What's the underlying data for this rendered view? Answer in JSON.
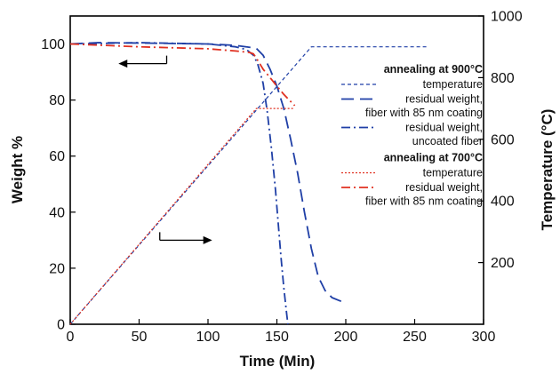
{
  "chart_data": {
    "type": "line",
    "xlabel": "Time (Min)",
    "ylabel": "Weight %",
    "y2label": "Temperature (°C)",
    "xlim": [
      0,
      300
    ],
    "ylim": [
      0,
      110
    ],
    "y2lim": [
      0,
      1000
    ],
    "xticks": [
      0,
      50,
      100,
      150,
      200,
      250,
      300
    ],
    "yticks": [
      0,
      20,
      40,
      60,
      80,
      100
    ],
    "y2ticks": [
      200,
      400,
      600,
      800,
      1000
    ],
    "grid": false,
    "legend_position": "right",
    "legend_groups": [
      {
        "title": "annealing at 900°C",
        "entries": [
          {
            "lines": [
              "temperature"
            ],
            "series": 0
          },
          {
            "lines": [
              "residual weight,",
              "fiber with 85 nm coating"
            ],
            "series": 1
          },
          {
            "lines": [
              "residual weight,",
              "uncoated fiber"
            ],
            "series": 2
          }
        ]
      },
      {
        "title": "annealing at 700°C",
        "entries": [
          {
            "lines": [
              "temperature"
            ],
            "series": 3
          },
          {
            "lines": [
              "residual weight,",
              "fiber with 85 nm coating"
            ],
            "series": 4
          }
        ]
      }
    ],
    "series": [
      {
        "axis": "y2",
        "color": "#1f3fa6",
        "dash": "4,3",
        "width": 1.2,
        "x": [
          0,
          175,
          260
        ],
        "y": [
          0,
          900,
          900
        ]
      },
      {
        "axis": "y",
        "color": "#1f3fa6",
        "dash": "14,7",
        "width": 1.8,
        "x": [
          0,
          20,
          60,
          100,
          120,
          135,
          140,
          145,
          150,
          155,
          160,
          165,
          170,
          175,
          180,
          185,
          190,
          195,
          200
        ],
        "y": [
          100,
          100.5,
          100.3,
          100,
          99.5,
          98.5,
          96,
          91,
          85,
          77,
          66,
          54,
          40,
          27,
          17,
          12,
          9.5,
          8.5,
          7.5
        ]
      },
      {
        "axis": "y",
        "color": "#1f3fa6",
        "dash": "10,4,2,4",
        "width": 1.8,
        "x": [
          0,
          50,
          100,
          120,
          128,
          133,
          136,
          140,
          143,
          146,
          149,
          151,
          153,
          155,
          157,
          158
        ],
        "y": [
          100,
          100.5,
          100,
          99,
          98,
          96,
          93,
          86,
          76,
          63,
          48,
          36,
          24,
          13,
          4,
          0
        ]
      },
      {
        "axis": "y2",
        "color": "#e03020",
        "dash": "2,2",
        "width": 1.2,
        "x": [
          0,
          135,
          162
        ],
        "y": [
          0,
          700,
          700
        ]
      },
      {
        "axis": "y",
        "color": "#e03020",
        "dash": "10,4,2,4",
        "width": 1.8,
        "x": [
          0,
          50,
          100,
          120,
          130,
          133,
          135,
          140,
          145,
          150,
          155,
          160,
          163
        ],
        "y": [
          100,
          99,
          98.3,
          97.5,
          97,
          96.5,
          95,
          91,
          88,
          85,
          82,
          79.5,
          78
        ]
      }
    ],
    "annotations": [
      {
        "type": "arrow",
        "direction": "left",
        "points_to": "y",
        "x": [
          35,
          70
        ],
        "y": 93
      },
      {
        "type": "arrow",
        "direction": "right",
        "points_to": "y2",
        "x": [
          65,
          103
        ],
        "y": 30
      }
    ]
  }
}
